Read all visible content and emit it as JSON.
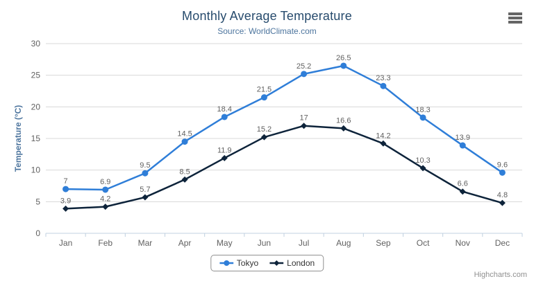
{
  "chart_data": {
    "type": "line",
    "title": "Monthly Average Temperature",
    "subtitle": "Source: WorldClimate.com",
    "categories": [
      "Jan",
      "Feb",
      "Mar",
      "Apr",
      "May",
      "Jun",
      "Jul",
      "Aug",
      "Sep",
      "Oct",
      "Nov",
      "Dec"
    ],
    "series": [
      {
        "name": "Tokyo",
        "color": "#2f7ed8",
        "marker": "circle",
        "values": [
          7,
          6.9,
          9.5,
          14.5,
          18.4,
          21.5,
          25.2,
          26.5,
          23.3,
          18.3,
          13.9,
          9.6
        ]
      },
      {
        "name": "London",
        "color": "#0d233a",
        "marker": "diamond",
        "values": [
          3.9,
          4.2,
          5.7,
          8.5,
          11.9,
          15.2,
          17,
          16.6,
          14.2,
          10.3,
          6.6,
          4.8
        ]
      }
    ],
    "xlabel": "",
    "ylabel": "Temperature (°C)",
    "ylim": [
      0,
      30
    ],
    "yticks": [
      0,
      5,
      10,
      15,
      20,
      25,
      30
    ],
    "grid": true,
    "data_labels_visible": true,
    "legend_position": "bottom-center"
  },
  "icons": {
    "export_menu": "hamburger-menu"
  },
  "colors": {
    "title": "#274b6d",
    "subtitle": "#4d759e",
    "axis_title": "#4d759e",
    "axis_labels": "#606060",
    "data_labels": "#606060",
    "grid_line": "#d8d8d8",
    "axis_line": "#c0d0e0",
    "legend_border": "#909090",
    "credits": "#909090"
  },
  "credits": {
    "label": "Highcharts.com"
  }
}
